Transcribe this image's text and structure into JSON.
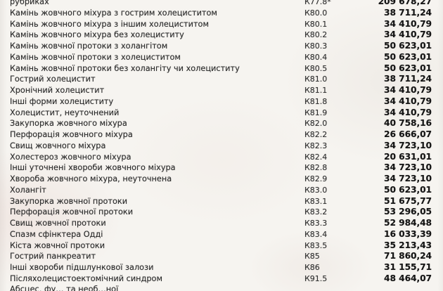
{
  "page": {
    "description_note": "",
    "table": {
      "rows": [
        {
          "name": "рубриках",
          "code": "К77.8*",
          "value": "209 678,27"
        },
        {
          "name": "Камінь жовчного міхура з гострим холециститом",
          "code": "К80.0",
          "value": "38 711,24"
        },
        {
          "name": "Камінь жовчного міхура з іншим холециститом",
          "code": "К80.1",
          "value": "34 410,79"
        },
        {
          "name": "Камінь жовчного міхура без холециститу",
          "code": "К80.2",
          "value": "34 410,79"
        },
        {
          "name": "Камінь жовчної протоки з холангітом",
          "code": "К80.3",
          "value": "50 623,01"
        },
        {
          "name": "Камінь жовчної протоки з холециститом",
          "code": "К80.4",
          "value": "50 623,01"
        },
        {
          "name": "Камінь жовчної протоки без холангіту чи холециститу",
          "code": "К80.5",
          "value": "50 623,01"
        },
        {
          "name": "Гострий холецистит",
          "code": "К81.0",
          "value": "38 711,24"
        },
        {
          "name": "Хронічний холецистит",
          "code": "К81.1",
          "value": "34 410,79"
        },
        {
          "name": "Інші форми холециститу",
          "code": "К81.8",
          "value": "34 410,79"
        },
        {
          "name": "Холецистит, неуточнений",
          "code": "К81.9",
          "value": "34 410,79"
        },
        {
          "name": "Закупорка жовчного міхура",
          "code": "К82.0",
          "value": "40 758,16"
        },
        {
          "name": "Перфорація жовчного міхура",
          "code": "К82.2",
          "value": "26 666,07"
        },
        {
          "name": "Свищ жовчного міхура",
          "code": "К82.3",
          "value": "34 723,10"
        },
        {
          "name": "Холестероз жовчного міхура",
          "code": "К82.4",
          "value": "20 631,01"
        },
        {
          "name": "Інші уточнені хвороби жовчного міхура",
          "code": "К82.8",
          "value": "34 723,10"
        },
        {
          "name": "Хвороба жовчного міхура, неуточнена",
          "code": "К82.9",
          "value": "34 723,10"
        },
        {
          "name": "Холангіт",
          "code": "К83.0",
          "value": "50 623,01"
        },
        {
          "name": "Закупорка жовчної протоки",
          "code": "К83.1",
          "value": "51 675,77"
        },
        {
          "name": "Перфорація жовчної протоки",
          "code": "К83.2",
          "value": "53 296,05"
        },
        {
          "name": "Свищ жовчної протоки",
          "code": "К83.3",
          "value": "52 984,48"
        },
        {
          "name": "Спазм сфінктера Одді",
          "code": "К83.4",
          "value": "16 033,39"
        },
        {
          "name": "Кіста жовчної протоки",
          "code": "К83.5",
          "value": "35 213,43"
        },
        {
          "name": "Гострий панкреатит",
          "code": "К85",
          "value": "71 860,24"
        },
        {
          "name": "Інші хвороби підшлункової залози",
          "code": "К86",
          "value": "31 155,71"
        },
        {
          "name": "Післяхолецистоектомічний синдром",
          "code": "К91.5",
          "value": "48 464,07"
        },
        {
          "name": "Абсцес, фу… та необ…ної",
          "code": "",
          "value": ""
        }
      ]
    }
  }
}
